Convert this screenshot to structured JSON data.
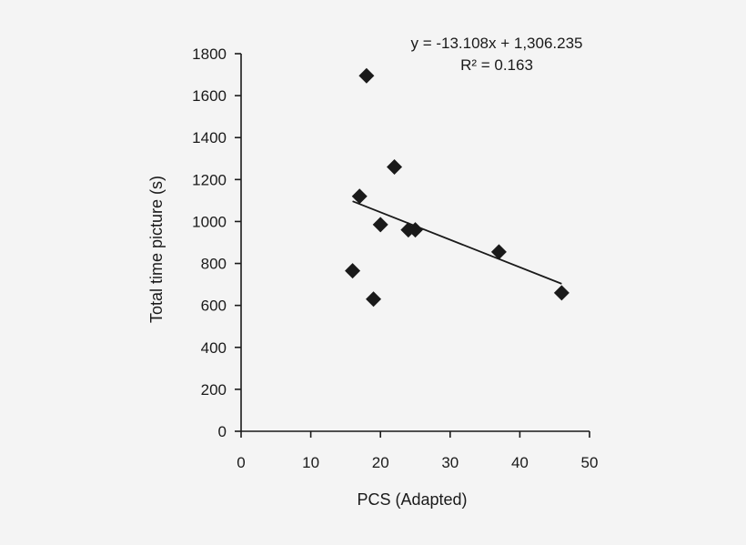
{
  "chart_data": {
    "type": "scatter",
    "xlabel": "PCS (Adapted)",
    "ylabel": "Total time picture (s)",
    "xlim": [
      0,
      50
    ],
    "ylim": [
      0,
      1800
    ],
    "xticks": [
      0,
      10,
      20,
      30,
      40,
      50
    ],
    "yticks": [
      0,
      200,
      400,
      600,
      800,
      1000,
      1200,
      1400,
      1600,
      1800
    ],
    "grid": false,
    "marker": "diamond",
    "marker_color": "#1a1a1a",
    "series": [
      {
        "points": [
          {
            "x": 16,
            "y": 765
          },
          {
            "x": 17,
            "y": 1120
          },
          {
            "x": 18,
            "y": 1695
          },
          {
            "x": 19,
            "y": 630
          },
          {
            "x": 20,
            "y": 985
          },
          {
            "x": 22,
            "y": 1260
          },
          {
            "x": 24,
            "y": 960
          },
          {
            "x": 25,
            "y": 960
          },
          {
            "x": 37,
            "y": 855
          },
          {
            "x": 46,
            "y": 660
          }
        ]
      }
    ],
    "trendline": {
      "type": "linear",
      "slope": -13.108,
      "intercept": 1306.235,
      "x_range": [
        16,
        46
      ],
      "equation": "y = -13.108x + 1,306.235",
      "r_squared": "R² = 0.163"
    }
  }
}
